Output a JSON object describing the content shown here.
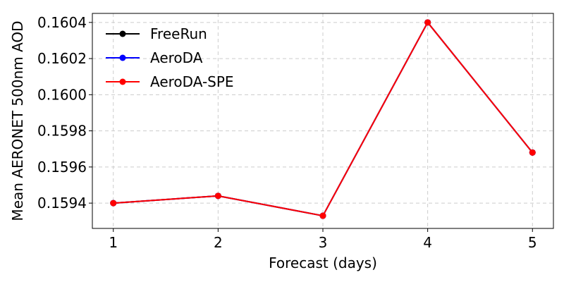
{
  "chart_data": {
    "type": "line",
    "title": "",
    "xlabel": "Forecast (days)",
    "ylabel": "Mean AERONET 500nm AOD",
    "x": [
      1,
      2,
      3,
      4,
      5
    ],
    "x_ticks": [
      "1",
      "2",
      "3",
      "4",
      "5"
    ],
    "y_ticks": [
      "0.1594",
      "0.1596",
      "0.1598",
      "0.1600",
      "0.1602",
      "0.1604"
    ],
    "xlim": [
      0.8,
      5.2
    ],
    "ylim": [
      0.15926,
      0.16045
    ],
    "grid": true,
    "legend_position": "top-left",
    "series": [
      {
        "name": "FreeRun",
        "color": "#000000",
        "values": [
          0.1594,
          0.15944,
          0.15933,
          0.1604,
          0.15968
        ]
      },
      {
        "name": "AeroDA",
        "color": "#0000ff",
        "values": [
          0.1594,
          0.15944,
          0.15933,
          0.1604,
          0.15968
        ]
      },
      {
        "name": "AeroDA-SPE",
        "color": "#ff0000",
        "values": [
          0.1594,
          0.15944,
          0.15933,
          0.1604,
          0.15968
        ]
      }
    ]
  }
}
